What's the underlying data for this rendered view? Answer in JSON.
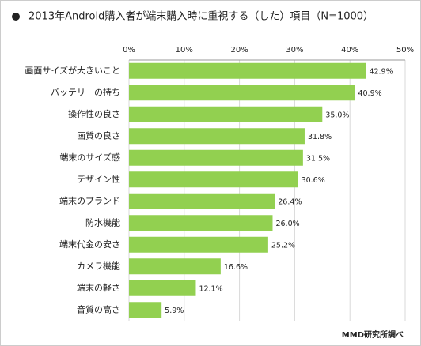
{
  "chart_data": {
    "type": "hbar",
    "title": "2013年Android購入者が端末購入時に重視する（した）項目（N=1000）",
    "source": "MMD研究所調べ",
    "categories": [
      "画面サイズが大きいこと",
      "バッテリーの持ち",
      "操作性の良さ",
      "画質の良さ",
      "端末のサイズ感",
      "デザイン性",
      "端末のブランド",
      "防水機能",
      "端末代金の安さ",
      "カメラ機能",
      "端末の軽さ",
      "音質の高さ"
    ],
    "values": [
      42.9,
      40.9,
      35.0,
      31.8,
      31.5,
      30.6,
      26.4,
      26.0,
      25.2,
      16.6,
      12.1,
      5.9
    ],
    "value_labels": [
      "42.9%",
      "40.9%",
      "35.0%",
      "31.8%",
      "31.5%",
      "30.6%",
      "26.4%",
      "26.0%",
      "25.2%",
      "16.6%",
      "12.1%",
      "5.9%"
    ],
    "color": "#92d050",
    "xlim": [
      0,
      50
    ],
    "xticks": [
      {
        "value": 0,
        "label": "0%"
      },
      {
        "value": 10,
        "label": "10%"
      },
      {
        "value": 20,
        "label": "20%"
      },
      {
        "value": 30,
        "label": "30%"
      },
      {
        "value": 40,
        "label": "40%"
      },
      {
        "value": 50,
        "label": "50%"
      }
    ],
    "grid": true
  }
}
